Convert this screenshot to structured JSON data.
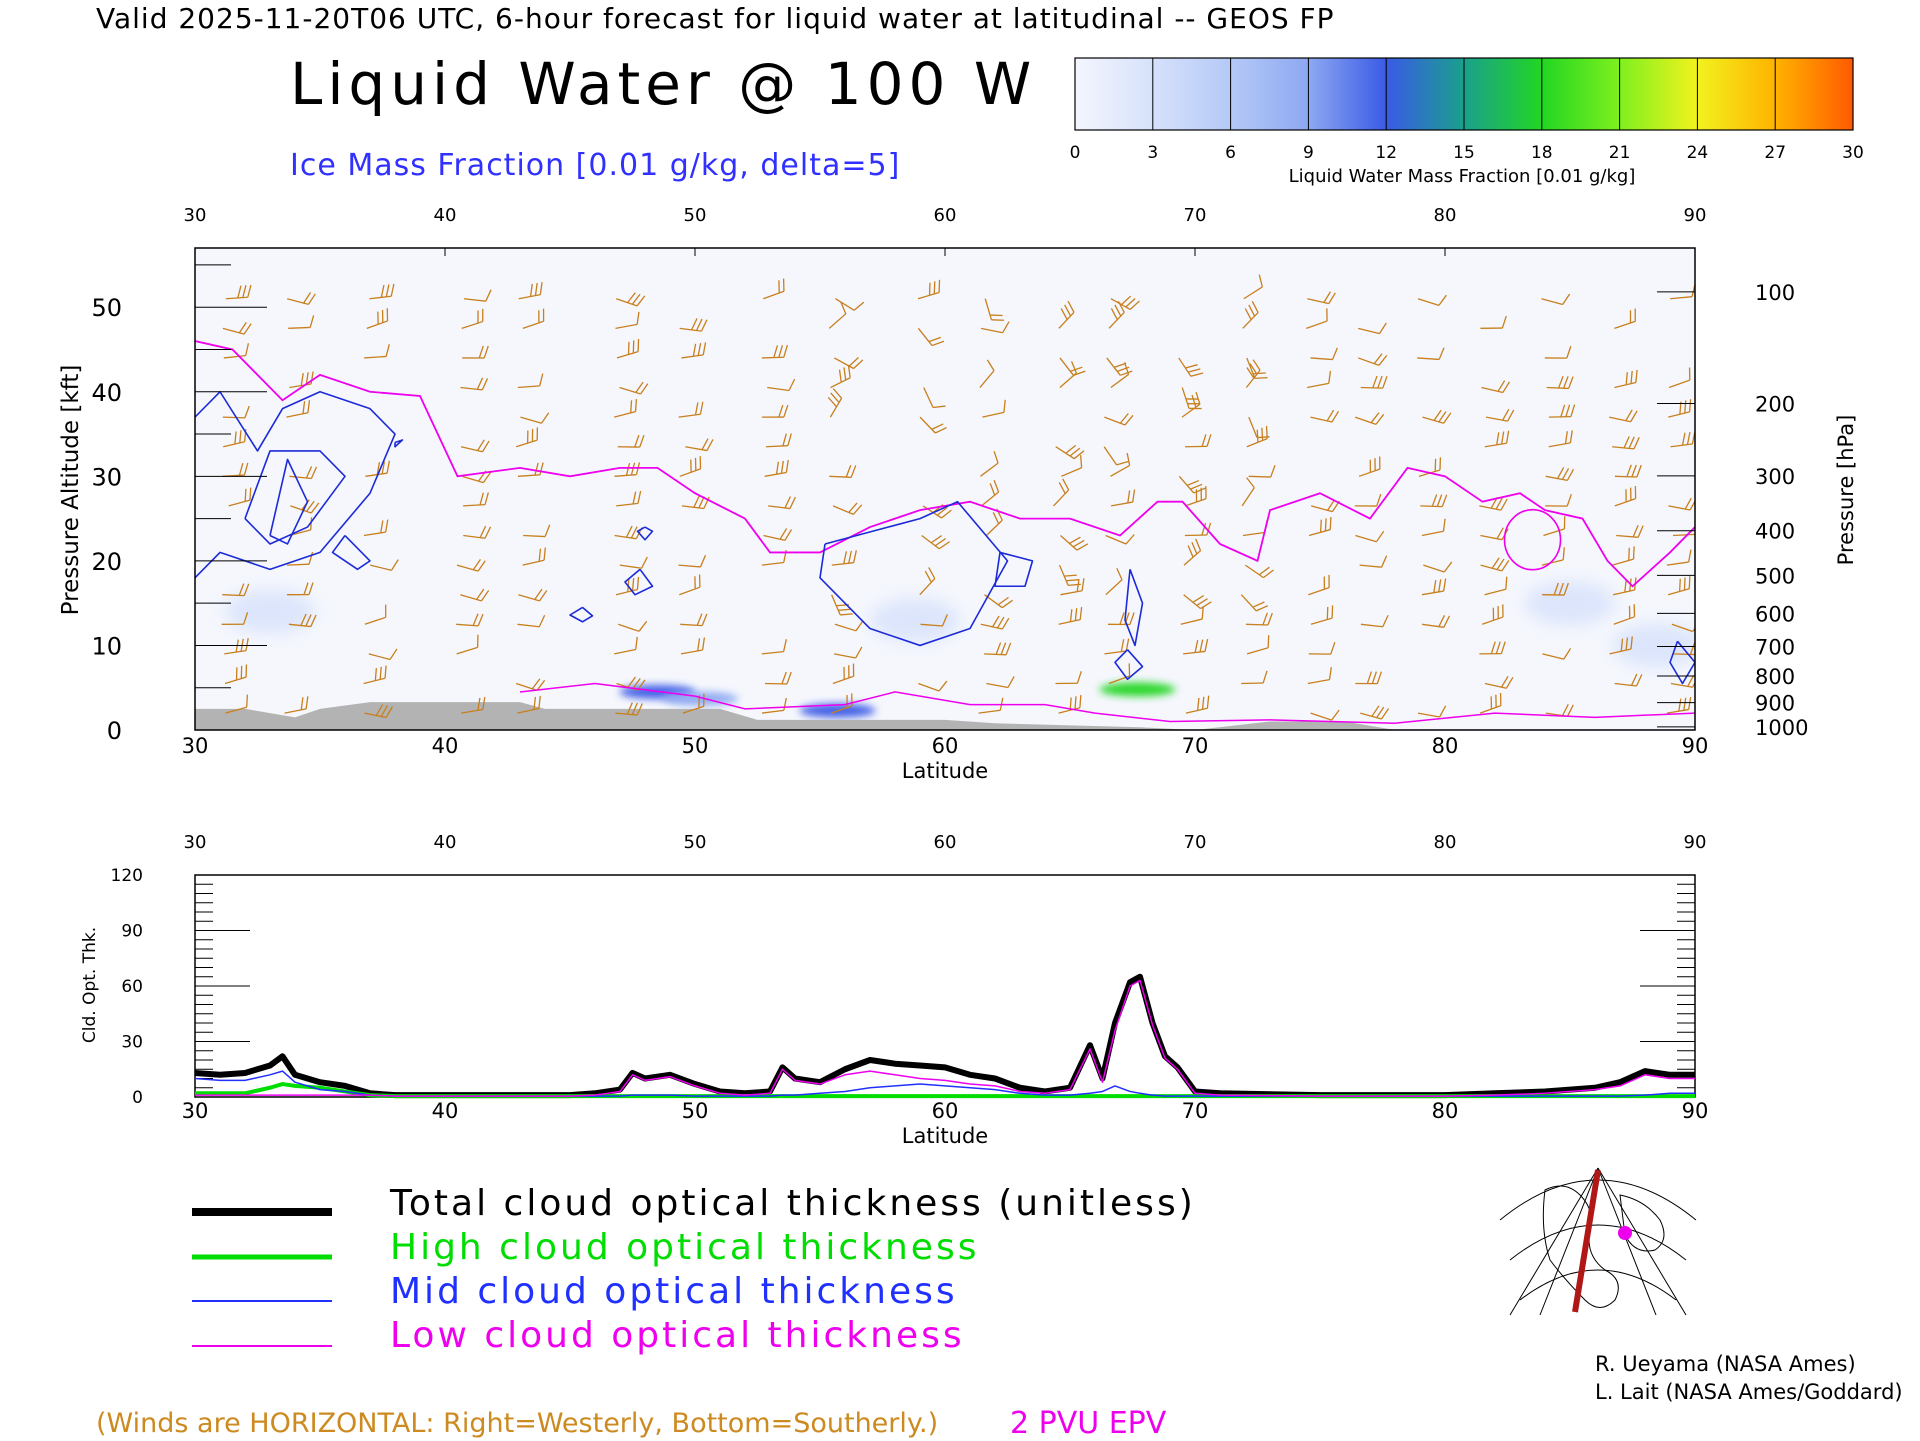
{
  "header": {
    "valid_line": "Valid 2025-11-20T06 UTC, 6-hour forecast for liquid water at latitudinal -- GEOS FP",
    "title": "Liquid Water @ 100 W",
    "subtitle": "Ice Mass Fraction [0.01 g/kg, delta=5]"
  },
  "colorbar": {
    "ticks": [
      "0",
      "3",
      "6",
      "9",
      "12",
      "15",
      "18",
      "21",
      "24",
      "27",
      "30"
    ],
    "label": "Liquid Water Mass Fraction [0.01 g/kg]",
    "colors": [
      "#f4f6fd",
      "#d6e1fb",
      "#b5c9f7",
      "#8da8f2",
      "#3a5ae6",
      "#1aa08c",
      "#22d622",
      "#7ef01e",
      "#f2f21e",
      "#ffb300",
      "#ff5a00"
    ]
  },
  "colors": {
    "wind_barbs": "#c87f1c",
    "ice_contour": "#1c2ad8",
    "pvu_contour": "#ee00ee",
    "terrain": "#b3b3b3",
    "total_line": "#000000",
    "high_line": "#00dd00",
    "mid_line": "#2030ff",
    "low_line": "#ee00ee"
  },
  "top_panel": {
    "x_ticks": [
      "30",
      "40",
      "50",
      "60",
      "70",
      "80",
      "90"
    ],
    "x_label": "Latitude",
    "y_left_ticks": [
      "0",
      "10",
      "20",
      "30",
      "40",
      "50"
    ],
    "y_left_label": "Pressure Altitude [kft]",
    "y_right_ticks": [
      "100",
      "200",
      "300",
      "400",
      "500",
      "600",
      "700",
      "800",
      "900",
      "1000"
    ],
    "y_right_label": "Pressure [hPa]"
  },
  "bottom_panel": {
    "x_ticks": [
      "30",
      "40",
      "50",
      "60",
      "70",
      "80",
      "90"
    ],
    "x_label": "Latitude",
    "y_ticks": [
      "0",
      "30",
      "60",
      "90",
      "120"
    ],
    "y_label": "Cld. Opt. Thk."
  },
  "legend": {
    "total": "Total cloud optical thickness (unitless)",
    "high": "High cloud optical thickness",
    "mid": "Mid cloud optical thickness",
    "low": "Low cloud optical thickness"
  },
  "footer": {
    "winds_note": "(Winds are HORIZONTAL: Right=Westerly, Bottom=Southerly.)",
    "pvu_note": "2 PVU EPV",
    "credit_1": "R. Ueyama (NASA Ames)",
    "credit_2": "L. Lait (NASA Ames/Goddard)"
  },
  "chart_data": [
    {
      "type": "heatmap",
      "xlabel": "Latitude",
      "ylabel": "Pressure Altitude [kft]",
      "y2label": "Pressure [hPa]",
      "xlim": [
        30,
        90
      ],
      "ylim": [
        0,
        57
      ],
      "grid": false,
      "ice_contours": [
        {
          "points": [
            [
              30,
              37
            ],
            [
              31,
              40
            ],
            [
              32.5,
              33
            ],
            [
              33.5,
              38
            ],
            [
              35,
              40
            ],
            [
              37,
              38
            ],
            [
              38,
              35
            ],
            [
              37,
              28
            ],
            [
              35,
              21
            ],
            [
              33,
              19
            ],
            [
              31,
              21
            ],
            [
              30,
              18
            ]
          ]
        },
        {
          "points": [
            [
              32,
              25
            ],
            [
              33,
              33
            ],
            [
              35,
              33
            ],
            [
              36,
              30
            ],
            [
              34.5,
              24
            ],
            [
              33,
              22
            ],
            [
              32,
              25
            ]
          ]
        },
        {
          "points": [
            [
              33,
              23
            ],
            [
              33.7,
              32
            ],
            [
              34.5,
              27
            ],
            [
              33.7,
              22
            ],
            [
              33,
              23
            ]
          ]
        },
        {
          "points": [
            [
              36,
              23
            ],
            [
              37,
              20
            ],
            [
              36.5,
              19
            ],
            [
              35.5,
              21
            ],
            [
              36,
              23
            ]
          ]
        },
        {
          "points": [
            [
              38,
              34
            ],
            [
              38.3,
              34.3
            ],
            [
              38,
              33.5
            ],
            [
              38,
              34
            ]
          ]
        },
        {
          "points": [
            [
              48,
              24
            ],
            [
              48.3,
              23.5
            ],
            [
              48,
              22.5
            ],
            [
              47.7,
              23.5
            ],
            [
              48,
              24
            ]
          ]
        },
        {
          "points": [
            [
              47.8,
              19
            ],
            [
              48.3,
              17
            ],
            [
              47.6,
              16
            ],
            [
              47.2,
              17.5
            ],
            [
              47.8,
              19
            ]
          ]
        },
        {
          "points": [
            [
              45.5,
              14.5
            ],
            [
              45.9,
              13.5
            ],
            [
              45.5,
              12.8
            ],
            [
              45.0,
              13.6
            ],
            [
              45.5,
              14.5
            ]
          ]
        },
        {
          "points": [
            [
              55.2,
              22
            ],
            [
              59,
              25
            ],
            [
              60.5,
              27
            ],
            [
              62.5,
              20
            ],
            [
              61,
              12
            ],
            [
              59,
              10
            ],
            [
              57,
              12
            ],
            [
              55,
              18
            ],
            [
              55.2,
              22
            ]
          ]
        },
        {
          "points": [
            [
              62.2,
              21
            ],
            [
              63.5,
              20
            ],
            [
              63.2,
              17
            ],
            [
              62,
              17
            ],
            [
              62.2,
              21
            ]
          ]
        },
        {
          "points": [
            [
              67.4,
              19
            ],
            [
              67.9,
              15
            ],
            [
              67.6,
              10
            ],
            [
              67.2,
              13
            ],
            [
              67.4,
              19
            ]
          ]
        },
        {
          "points": [
            [
              67.3,
              9.5
            ],
            [
              67.9,
              7.5
            ],
            [
              67.3,
              6
            ],
            [
              66.8,
              8
            ],
            [
              67.3,
              9.5
            ]
          ]
        },
        {
          "points": [
            [
              89.3,
              10.5
            ],
            [
              90,
              8
            ],
            [
              89.5,
              5.5
            ],
            [
              89.0,
              8
            ],
            [
              89.3,
              10.5
            ]
          ]
        }
      ],
      "pvu_contour": [
        [
          30,
          46
        ],
        [
          31.5,
          45
        ],
        [
          33.5,
          39
        ],
        [
          35,
          42
        ],
        [
          37,
          40
        ],
        [
          39,
          39.5
        ],
        [
          40.5,
          30
        ],
        [
          43,
          31
        ],
        [
          45,
          30
        ],
        [
          47,
          31
        ],
        [
          48.5,
          31
        ],
        [
          50,
          28
        ],
        [
          52,
          25
        ],
        [
          53,
          21
        ],
        [
          55,
          21
        ],
        [
          57,
          24
        ],
        [
          59,
          26
        ],
        [
          61,
          27
        ],
        [
          63,
          25
        ],
        [
          65,
          25
        ],
        [
          67,
          23
        ],
        [
          68.5,
          27
        ],
        [
          69.5,
          27
        ],
        [
          71,
          22
        ],
        [
          72.5,
          20
        ],
        [
          73,
          26
        ],
        [
          75,
          28
        ],
        [
          77,
          25
        ],
        [
          78.5,
          31
        ],
        [
          80,
          30
        ],
        [
          81.5,
          27
        ],
        [
          83,
          28
        ],
        [
          84,
          26
        ],
        [
          85.5,
          25
        ],
        [
          86.5,
          20
        ],
        [
          87.5,
          17
        ],
        [
          89,
          21
        ],
        [
          90,
          24
        ]
      ],
      "liquid_water_blobs": [
        {
          "lat": 48.5,
          "kft": 4.5,
          "value": 12
        },
        {
          "lat": 50.2,
          "kft": 3.7,
          "value": 10
        },
        {
          "lat": 55.7,
          "kft": 2.3,
          "value": 13
        },
        {
          "lat": 67.7,
          "kft": 4.8,
          "value": 17
        },
        {
          "lat": 58.8,
          "kft": 13,
          "value": 3
        },
        {
          "lat": 33.0,
          "kft": 14,
          "value": 2
        },
        {
          "lat": 85.0,
          "kft": 15,
          "value": 2
        },
        {
          "lat": 88.5,
          "kft": 10,
          "value": 3
        }
      ],
      "terrain": [
        [
          30,
          2.5
        ],
        [
          32,
          2.5
        ],
        [
          34,
          1.5
        ],
        [
          35,
          2.5
        ],
        [
          37,
          3.3
        ],
        [
          43,
          3.3
        ],
        [
          44,
          2.5
        ],
        [
          51,
          2.5
        ],
        [
          52.5,
          1.2
        ],
        [
          58,
          1.2
        ],
        [
          60,
          1.2
        ],
        [
          62,
          0.8
        ],
        [
          68,
          0.3
        ],
        [
          70,
          0
        ],
        [
          73,
          1
        ],
        [
          76,
          1
        ],
        [
          78,
          0
        ],
        [
          90,
          0
        ]
      ]
    },
    {
      "type": "line",
      "xlabel": "Latitude",
      "ylabel": "Cld. Opt. Thk.",
      "ylim": [
        0,
        120
      ],
      "x": [
        30,
        31,
        32,
        33,
        33.5,
        34,
        35,
        36,
        37,
        38,
        40,
        45,
        46,
        47,
        47.5,
        48,
        49,
        50,
        51,
        52,
        53,
        53.5,
        54,
        55,
        56,
        57,
        58,
        59,
        60,
        61,
        62,
        63,
        64,
        65,
        65.8,
        66.3,
        66.8,
        67.4,
        67.8,
        68.3,
        68.8,
        69.3,
        70,
        71,
        75,
        80,
        82,
        84,
        86,
        87,
        88,
        89,
        90
      ],
      "series": [
        {
          "name": "Total cloud optical thickness (unitless)",
          "values": [
            13,
            12,
            13,
            17,
            22,
            12,
            8,
            6,
            2,
            1,
            1,
            1,
            2,
            4,
            13,
            10,
            12,
            7,
            3,
            2,
            3,
            16,
            10,
            8,
            15,
            20,
            18,
            17,
            16,
            12,
            10,
            5,
            3,
            5,
            28,
            10,
            40,
            62,
            65,
            40,
            22,
            16,
            3,
            2,
            1,
            1,
            2,
            3,
            5,
            8,
            14,
            12,
            12
          ]
        },
        {
          "name": "High cloud optical thickness",
          "values": [
            2,
            2,
            2,
            5,
            7,
            6,
            5,
            3,
            1,
            0.5,
            0.5,
            0.5,
            0.5,
            0.5,
            0.5,
            0.5,
            0.5,
            0.5,
            0.5,
            0.5,
            0.5,
            0.5,
            0.5,
            0.5,
            0.5,
            0.5,
            0.5,
            0.5,
            0.5,
            0.5,
            0.5,
            0.5,
            0.5,
            0.5,
            0.5,
            0.5,
            0.5,
            0.5,
            0.5,
            0.5,
            0.5,
            0.5,
            0.5,
            0.5,
            0.5,
            0.5,
            0.5,
            0.5,
            0.5,
            0.5,
            0.5,
            0.5,
            0.5
          ]
        },
        {
          "name": "Mid cloud optical thickness",
          "values": [
            10,
            9,
            9,
            12,
            14,
            8,
            4,
            3,
            1,
            0.5,
            0.5,
            0.5,
            0.5,
            0.5,
            1,
            1,
            1,
            0.5,
            0.5,
            0.5,
            0.5,
            1,
            1,
            2,
            3,
            5,
            6,
            7,
            6,
            5,
            4,
            2,
            1,
            1,
            2,
            3,
            6,
            3,
            2,
            1,
            0.5,
            0.5,
            0.5,
            0.5,
            0.5,
            0.5,
            0.5,
            0.5,
            0.5,
            0.5,
            1,
            2,
            2
          ]
        },
        {
          "name": "Low cloud optical thickness",
          "values": [
            1,
            1,
            1,
            1,
            1,
            1,
            1,
            1,
            1,
            0.5,
            0.5,
            0.5,
            1,
            3,
            12,
            9,
            11,
            6,
            2,
            1,
            2,
            15,
            9,
            7,
            12,
            14,
            12,
            10,
            9,
            7,
            6,
            3,
            2,
            4,
            26,
            8,
            36,
            60,
            63,
            39,
            21,
            15,
            2,
            1,
            0.5,
            0.5,
            1,
            2,
            4,
            6,
            12,
            10,
            10
          ]
        }
      ]
    }
  ]
}
